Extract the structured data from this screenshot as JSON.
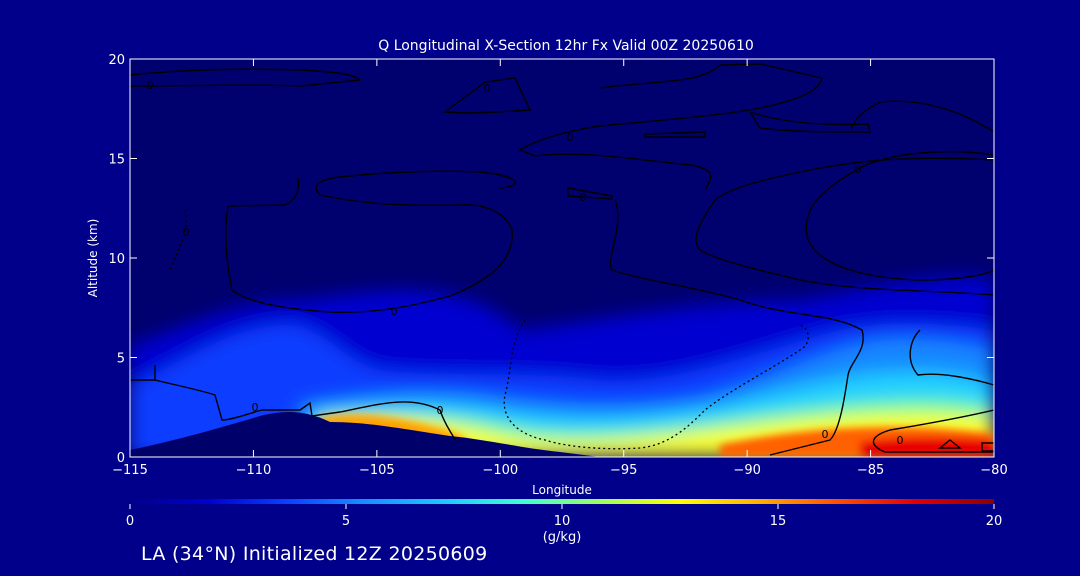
{
  "chart_data": {
    "type": "heatmap",
    "title": "Q Longitudinal X-Section 12hr  Fx Valid 00Z 20250610",
    "xlabel": "Longitude",
    "ylabel": "Altitude (km)",
    "xlim": [
      -115,
      -80
    ],
    "ylim": [
      0,
      20
    ],
    "x_ticks": [
      -115,
      -110,
      -105,
      -100,
      -95,
      -90,
      -85,
      -80
    ],
    "x_tick_labels": [
      "−115",
      "−110",
      "−105",
      "−100",
      "−95",
      "−90",
      "−85",
      "−80"
    ],
    "y_ticks": [
      0,
      5,
      10,
      15,
      20
    ],
    "y_tick_labels": [
      "0",
      "5",
      "10",
      "15",
      "20"
    ],
    "colorbar": {
      "label": "(g/kg)",
      "min": 0,
      "max": 20,
      "ticks": [
        0,
        5,
        10,
        15,
        20
      ],
      "tick_labels": [
        "0",
        "5",
        "10",
        "15",
        "20"
      ],
      "colormap": [
        "#00008b",
        "#0000d0",
        "#0a40ff",
        "#1890ff",
        "#20c8ff",
        "#40ffd0",
        "#a0ff60",
        "#ffff00",
        "#ffb000",
        "#ff5000",
        "#e00000",
        "#8b0000"
      ]
    },
    "contour_labels": [
      "0",
      "0",
      "0",
      "0",
      "0",
      "0",
      "0",
      "0",
      "0",
      "0",
      "0"
    ],
    "humidity_profile": {
      "x": [
        -115,
        -113,
        -111,
        -109,
        -107,
        -105,
        -103,
        -101,
        -99,
        -97,
        -95,
        -93,
        -91,
        -89,
        -87,
        -85,
        -83,
        -81,
        -80
      ],
      "surface_q": [
        3,
        3.5,
        4,
        4,
        12,
        14,
        14,
        14,
        13,
        12,
        12,
        11,
        12,
        13,
        14,
        16,
        18,
        19,
        19
      ],
      "moist_depth_km": [
        4.5,
        4.5,
        5,
        6,
        7,
        5,
        4.5,
        4.5,
        4,
        3.5,
        3.5,
        3.5,
        4,
        5,
        6,
        7.5,
        8,
        8.5,
        8.5
      ]
    },
    "terrain_km": {
      "x": [
        -115,
        -113,
        -111,
        -109,
        -108,
        -107,
        -105,
        -103,
        -101,
        -99,
        -97,
        -95,
        -80
      ],
      "y": [
        0.3,
        0.5,
        0.9,
        2.0,
        2.0,
        1.6,
        1.5,
        1.2,
        0.9,
        0.5,
        0.2,
        0,
        0
      ]
    }
  },
  "footer": "LA (34°N) Initialized 12Z 20250609",
  "colors": {
    "background": "#00008a",
    "text": "#ffffff",
    "contour": "#000000",
    "terrain": "#000066"
  }
}
